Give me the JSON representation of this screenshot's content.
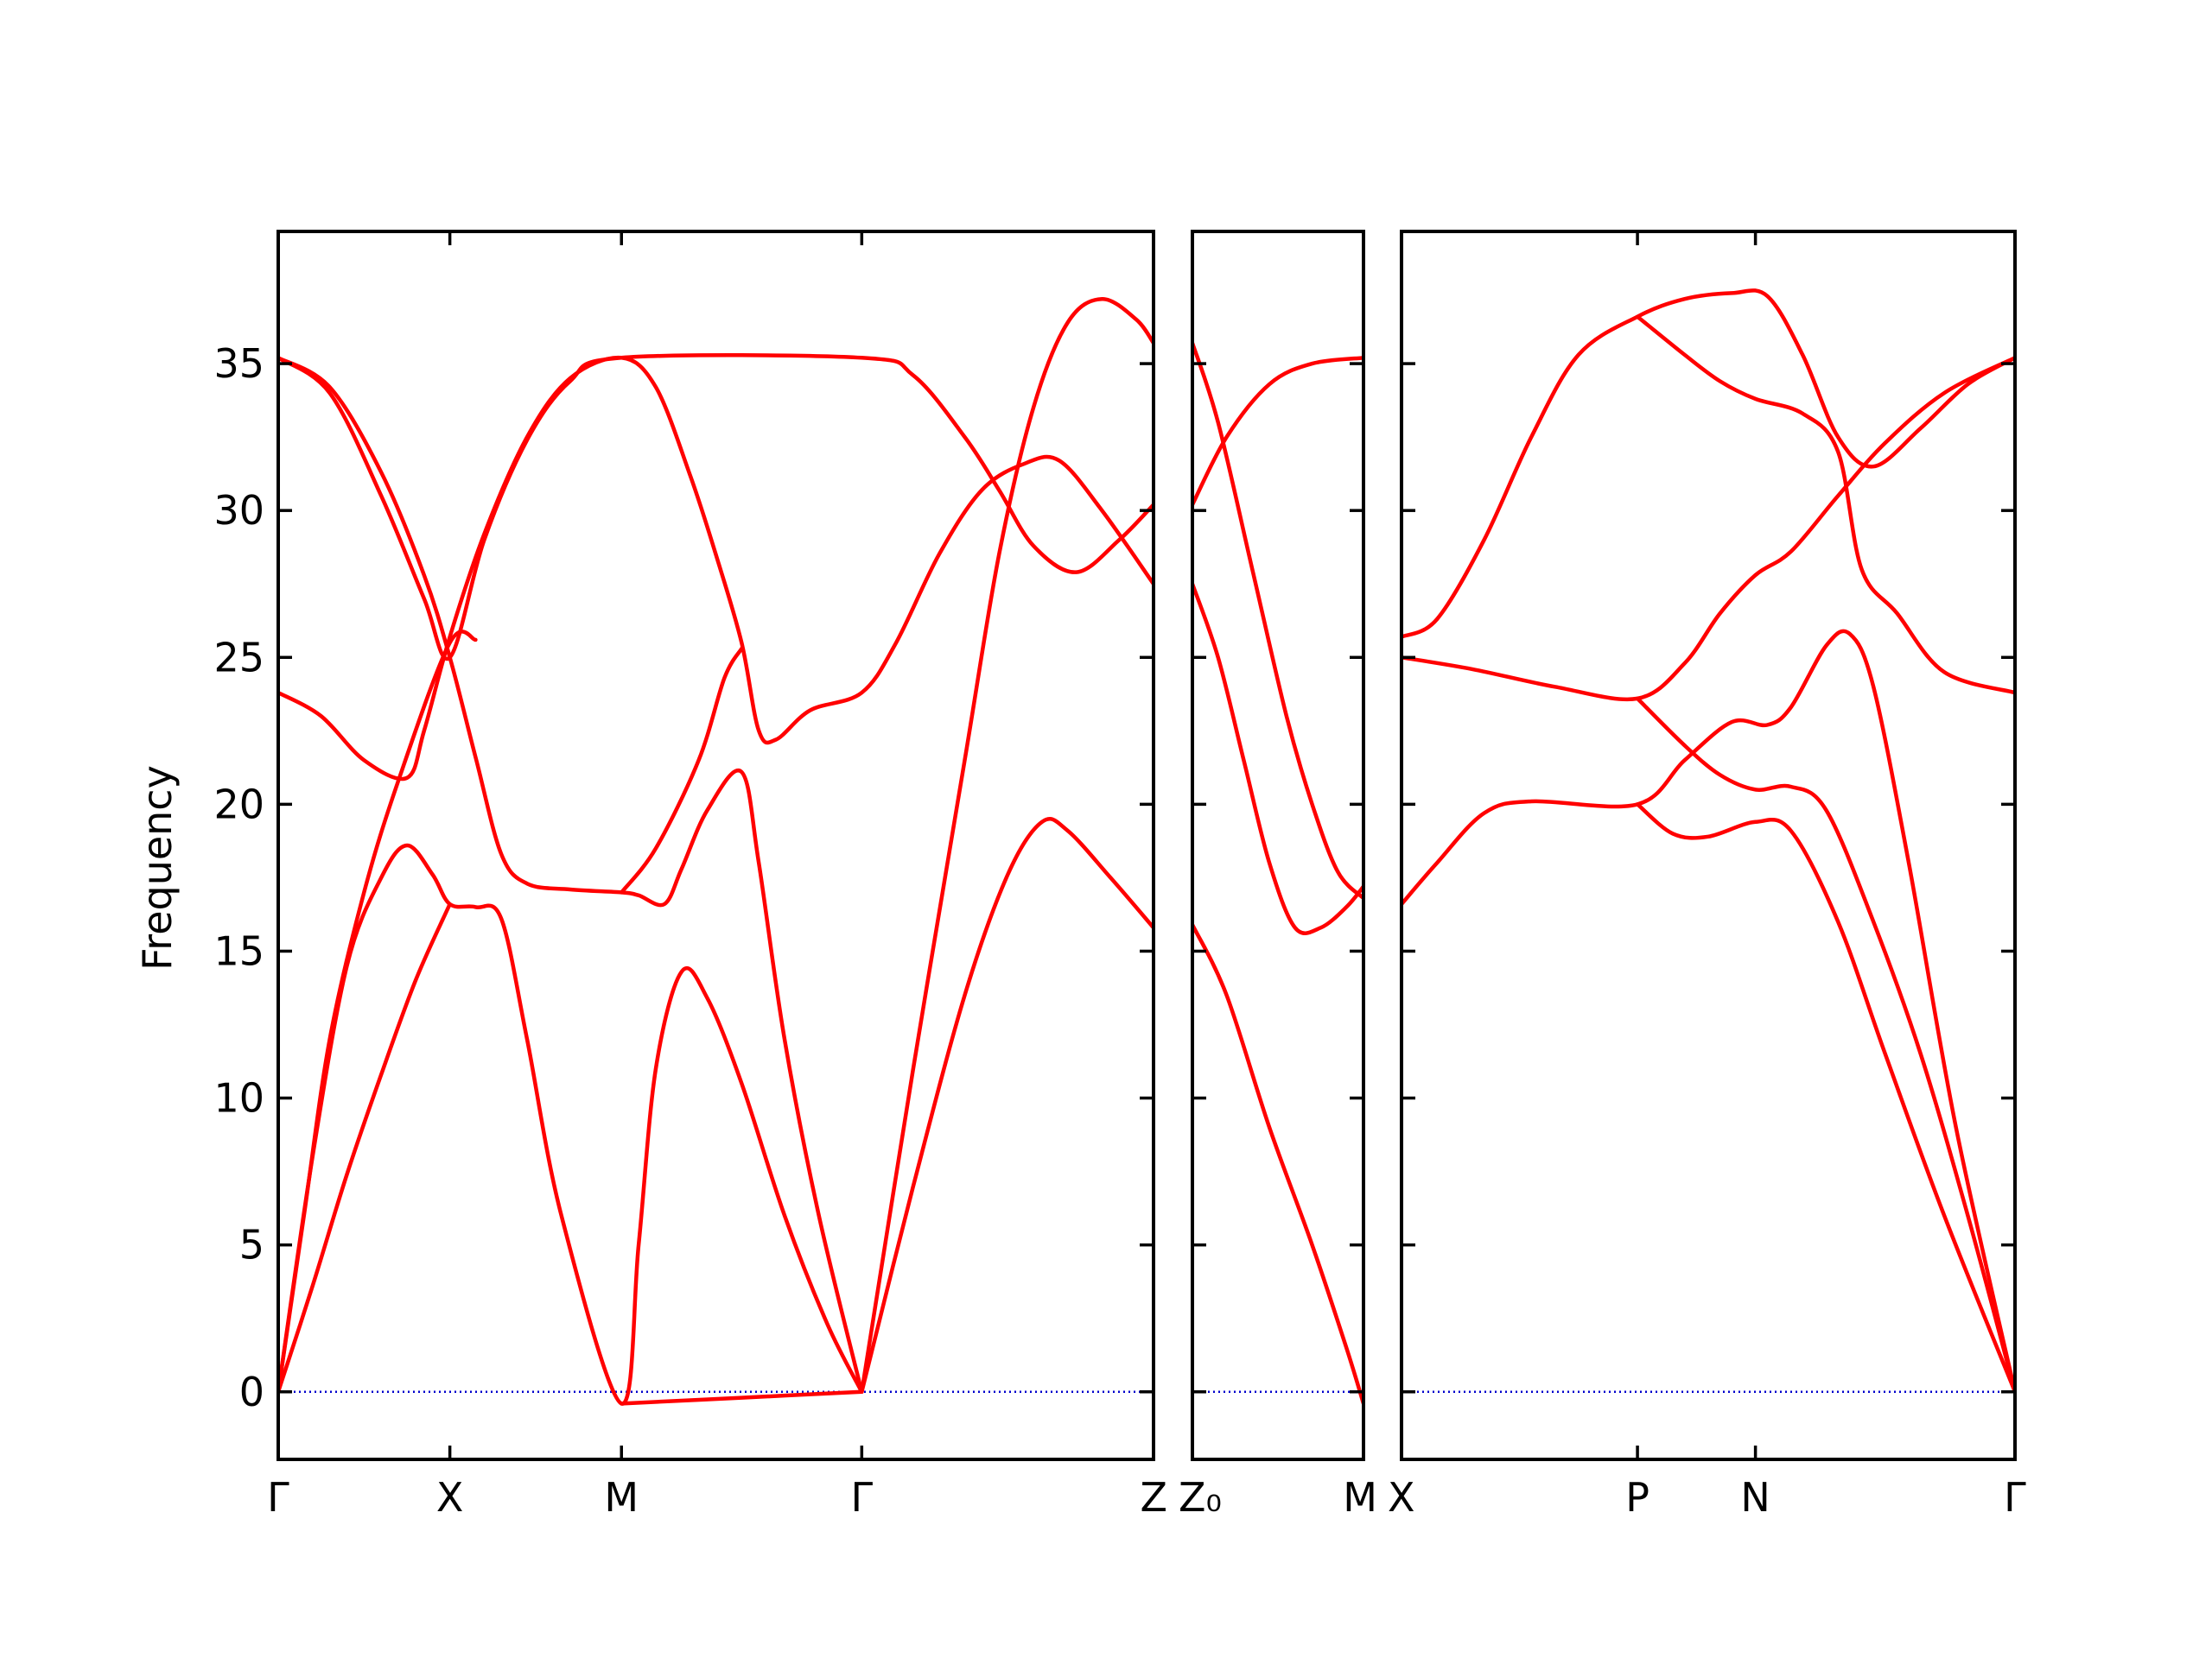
{
  "chart_data": {
    "type": "line",
    "ylabel": "Frequency",
    "ylim": [
      -2.3,
      39.5
    ],
    "yticks": [
      0,
      5,
      10,
      15,
      20,
      25,
      30,
      35
    ],
    "zero_line": true,
    "grid": false,
    "colors": {
      "band": "#ff0000",
      "zero": "#0000cc",
      "frame": "#000000"
    },
    "panels": [
      {
        "id": "gamma-x-m-gamma-z",
        "xlim": [
          0,
          5.1
        ],
        "xticks": [
          {
            "x": 0,
            "label": "Γ"
          },
          {
            "x": 1.0,
            "label": "X"
          },
          {
            "x": 2.0,
            "label": "M"
          },
          {
            "x": 3.4,
            "label": "Γ"
          },
          {
            "x": 5.1,
            "label": "Z"
          }
        ],
        "series": [
          {
            "points": [
              [
                0,
                35.2
              ],
              [
                0.3,
                34.2
              ],
              [
                0.6,
                31.3
              ],
              [
                0.85,
                27.8
              ],
              [
                1.0,
                25.0
              ],
              [
                1.15,
                21.6
              ],
              [
                1.3,
                18.3
              ],
              [
                1.45,
                17.3
              ],
              [
                1.7,
                17.1
              ],
              [
                2.0,
                17.0
              ],
              [
                2.1,
                16.9
              ],
              [
                2.25,
                16.6
              ],
              [
                2.35,
                17.8
              ],
              [
                2.5,
                19.8
              ],
              [
                2.7,
                21.1
              ],
              [
                2.8,
                18.0
              ],
              [
                2.95,
                12.0
              ],
              [
                3.15,
                6.0
              ],
              [
                3.4,
                0.0
              ]
            ]
          },
          {
            "points": [
              [
                0,
                35.2
              ],
              [
                0.3,
                34.0
              ],
              [
                0.6,
                30.5
              ],
              [
                0.85,
                27.0
              ],
              [
                1.0,
                25.0
              ],
              [
                1.2,
                29.0
              ],
              [
                1.45,
                32.4
              ],
              [
                1.7,
                34.4
              ],
              [
                2.0,
                35.2
              ],
              [
                3.4,
                35.2
              ],
              [
                3.7,
                34.6
              ],
              [
                4.0,
                32.5
              ],
              [
                4.2,
                30.7
              ],
              [
                4.4,
                28.8
              ],
              [
                4.65,
                27.9
              ],
              [
                4.9,
                29.0
              ],
              [
                5.1,
                30.2
              ]
            ]
          },
          {
            "points": [
              [
                0,
                23.8
              ],
              [
                0.25,
                23.0
              ],
              [
                0.5,
                21.5
              ],
              [
                0.75,
                20.9
              ],
              [
                0.85,
                22.5
              ],
              [
                1.0,
                25.7
              ],
              [
                1.2,
                29.2
              ],
              [
                1.45,
                32.5
              ],
              [
                1.7,
                34.5
              ],
              [
                2.0,
                35.2
              ],
              [
                2.2,
                34.2
              ],
              [
                2.4,
                31.2
              ],
              [
                2.55,
                28.5
              ],
              [
                2.7,
                25.5
              ],
              [
                2.8,
                22.5
              ],
              [
                2.9,
                22.2
              ],
              [
                3.1,
                23.2
              ],
              [
                3.4,
                23.8
              ],
              [
                3.6,
                25.5
              ],
              [
                3.85,
                28.5
              ],
              [
                4.1,
                30.7
              ],
              [
                4.35,
                31.6
              ],
              [
                4.55,
                31.7
              ],
              [
                4.8,
                30.0
              ],
              [
                5.1,
                27.5
              ]
            ]
          },
          {
            "points": [
              [
                0,
                0.0
              ],
              [
                0.2,
                8.0
              ],
              [
                0.4,
                14.5
              ],
              [
                0.6,
                17.5
              ],
              [
                0.75,
                18.6
              ],
              [
                0.9,
                17.6
              ],
              [
                1.0,
                16.6
              ],
              [
                1.15,
                16.5
              ],
              [
                1.3,
                16.1
              ],
              [
                1.45,
                12.0
              ],
              [
                1.65,
                6.0
              ],
              [
                2.0,
                -0.4
              ],
              [
                2.1,
                5.0
              ],
              [
                2.2,
                11.0
              ],
              [
                2.35,
                14.3
              ],
              [
                2.5,
                13.4
              ],
              [
                2.7,
                10.5
              ],
              [
                2.95,
                6.0
              ],
              [
                3.2,
                2.3
              ],
              [
                3.4,
                0.0
              ]
            ]
          },
          {
            "points": [
              [
                0,
                0.0
              ],
              [
                0.2,
                3.6
              ],
              [
                0.4,
                7.4
              ],
              [
                0.6,
                10.8
              ],
              [
                0.8,
                14.0
              ],
              [
                1.0,
                16.6
              ]
            ]
          },
          {
            "points": [
              [
                0,
                0.0
              ],
              [
                0.15,
                6.0
              ],
              [
                0.3,
                12.0
              ],
              [
                0.5,
                17.0
              ],
              [
                0.7,
                20.8
              ],
              [
                1.0,
                25.5
              ],
              [
                1.15,
                25.6
              ]
            ]
          },
          {
            "points": [
              [
                2.0,
                17.0
              ],
              [
                2.2,
                18.5
              ],
              [
                2.45,
                21.5
              ],
              [
                2.6,
                24.3
              ],
              [
                2.7,
                25.3
              ]
            ]
          },
          {
            "points": [
              [
                2.0,
                -0.4
              ],
              [
                2.7,
                -0.2
              ],
              [
                3.4,
                0.0
              ]
            ]
          },
          {
            "points": [
              [
                3.4,
                0.0
              ],
              [
                3.7,
                7.0
              ],
              [
                4.0,
                13.5
              ],
              [
                4.25,
                17.6
              ],
              [
                4.45,
                19.4
              ],
              [
                4.6,
                19.1
              ],
              [
                4.85,
                17.5
              ],
              [
                5.1,
                15.8
              ]
            ]
          },
          {
            "points": [
              [
                3.4,
                0.0
              ],
              [
                3.7,
                11.0
              ],
              [
                4.0,
                21.5
              ],
              [
                4.2,
                28.5
              ],
              [
                4.4,
                33.5
              ],
              [
                4.6,
                36.4
              ],
              [
                4.8,
                37.2
              ],
              [
                5.0,
                36.5
              ],
              [
                5.1,
                35.7
              ]
            ]
          }
        ]
      },
      {
        "id": "z0-m",
        "xlim": [
          0,
          1.0
        ],
        "xticks": [
          {
            "x": 0,
            "label": "Z₀"
          },
          {
            "x": 1.0,
            "label": "M"
          }
        ],
        "series": [
          {
            "points": [
              [
                0,
                30.2
              ],
              [
                0.2,
                32.5
              ],
              [
                0.45,
                34.3
              ],
              [
                0.7,
                35.0
              ],
              [
                1.0,
                35.2
              ]
            ]
          },
          {
            "points": [
              [
                0,
                35.7
              ],
              [
                0.15,
                33.0
              ],
              [
                0.35,
                28.0
              ],
              [
                0.55,
                23.0
              ],
              [
                0.7,
                20.0
              ],
              [
                0.85,
                17.7
              ],
              [
                1.0,
                16.8
              ]
            ]
          },
          {
            "points": [
              [
                0,
                27.5
              ],
              [
                0.15,
                25.0
              ],
              [
                0.3,
                21.5
              ],
              [
                0.45,
                18.0
              ],
              [
                0.6,
                15.8
              ],
              [
                0.75,
                15.8
              ],
              [
                0.9,
                16.5
              ],
              [
                1.0,
                17.2
              ]
            ]
          },
          {
            "points": [
              [
                0,
                15.9
              ],
              [
                0.2,
                13.5
              ],
              [
                0.45,
                9.0
              ],
              [
                0.7,
                5.0
              ],
              [
                0.9,
                1.5
              ],
              [
                1.0,
                -0.4
              ]
            ]
          }
        ]
      },
      {
        "id": "x-p-n-gamma",
        "xlim": [
          0,
          2.6
        ],
        "xticks": [
          {
            "x": 0,
            "label": "X"
          },
          {
            "x": 1.0,
            "label": "P"
          },
          {
            "x": 1.5,
            "label": "N"
          },
          {
            "x": 2.6,
            "label": "Γ"
          }
        ],
        "series": [
          {
            "points": [
              [
                0,
                25.7
              ],
              [
                0.15,
                26.3
              ],
              [
                0.35,
                29.0
              ],
              [
                0.55,
                32.5
              ],
              [
                0.75,
                35.3
              ],
              [
                1.0,
                36.6
              ],
              [
                1.2,
                37.2
              ],
              [
                1.4,
                37.4
              ],
              [
                1.55,
                37.3
              ],
              [
                1.7,
                35.3
              ],
              [
                1.85,
                32.5
              ],
              [
                2.0,
                31.5
              ],
              [
                2.2,
                32.8
              ],
              [
                2.4,
                34.3
              ],
              [
                2.6,
                35.2
              ]
            ]
          },
          {
            "points": [
              [
                0,
                25.0
              ],
              [
                0.3,
                24.6
              ],
              [
                0.65,
                24.0
              ],
              [
                1.0,
                23.6
              ],
              [
                1.2,
                24.8
              ],
              [
                1.35,
                26.5
              ],
              [
                1.5,
                27.8
              ],
              [
                1.65,
                28.6
              ],
              [
                1.85,
                30.5
              ],
              [
                2.05,
                32.3
              ],
              [
                2.3,
                34.0
              ],
              [
                2.6,
                35.2
              ]
            ]
          },
          {
            "points": [
              [
                0,
                16.6
              ],
              [
                0.15,
                18.0
              ],
              [
                0.35,
                19.7
              ],
              [
                0.55,
                20.1
              ],
              [
                1.0,
                20.0
              ],
              [
                1.2,
                21.5
              ],
              [
                1.4,
                22.8
              ],
              [
                1.55,
                22.7
              ],
              [
                1.65,
                23.3
              ],
              [
                1.8,
                25.4
              ],
              [
                1.9,
                25.8
              ],
              [
                2.0,
                24.0
              ],
              [
                2.15,
                18.0
              ],
              [
                2.35,
                9.0
              ],
              [
                2.6,
                0.0
              ]
            ]
          },
          {
            "points": [
              [
                1.0,
                36.6
              ],
              [
                1.2,
                35.3
              ],
              [
                1.35,
                34.4
              ],
              [
                1.5,
                33.8
              ],
              [
                1.7,
                33.3
              ],
              [
                1.85,
                32.0
              ],
              [
                1.95,
                28.0
              ],
              [
                2.1,
                26.5
              ],
              [
                2.3,
                24.5
              ],
              [
                2.6,
                23.8
              ]
            ]
          },
          {
            "points": [
              [
                1.0,
                23.6
              ],
              [
                1.2,
                22.0
              ],
              [
                1.35,
                21.0
              ],
              [
                1.5,
                20.5
              ],
              [
                1.65,
                20.6
              ],
              [
                1.8,
                19.8
              ],
              [
                2.0,
                16.0
              ],
              [
                2.2,
                11.5
              ],
              [
                2.4,
                6.0
              ],
              [
                2.6,
                0.0
              ]
            ]
          },
          {
            "points": [
              [
                1.0,
                20.0
              ],
              [
                1.15,
                19.0
              ],
              [
                1.3,
                18.9
              ],
              [
                1.5,
                19.4
              ],
              [
                1.65,
                19.1
              ],
              [
                1.85,
                16.0
              ],
              [
                2.05,
                11.5
              ],
              [
                2.3,
                6.0
              ],
              [
                2.6,
                0.0
              ]
            ]
          }
        ]
      }
    ]
  }
}
